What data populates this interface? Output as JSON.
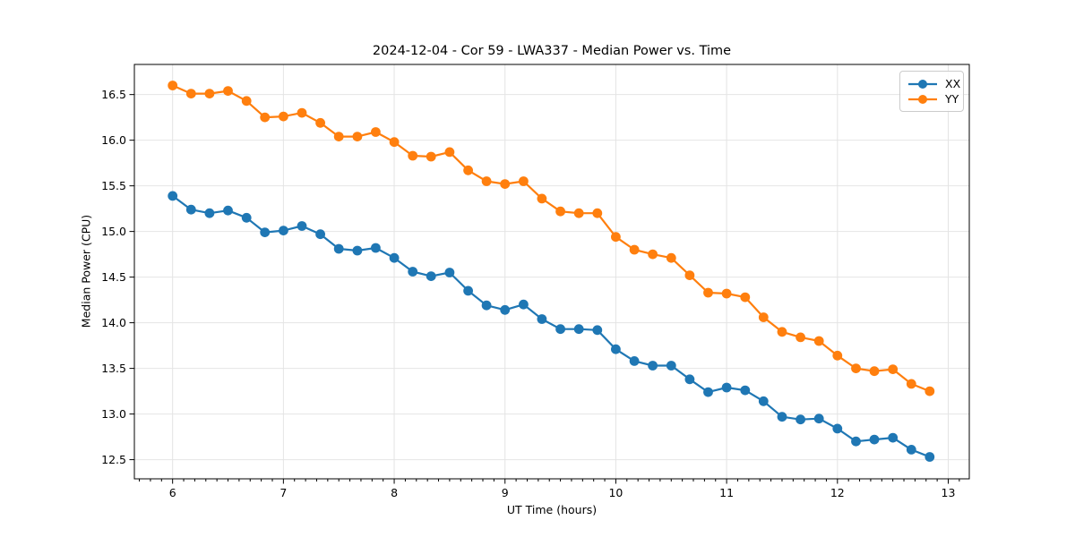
{
  "figure": {
    "background": "#ffffff",
    "grid_color": "#e4e4e4",
    "spine_color": "#000000",
    "tick_color": "#000000",
    "text_color": "#000000"
  },
  "chart_data": {
    "type": "line",
    "title": "2024-12-04 - Cor 59 - LWA337 - Median Power vs. Time",
    "xlabel": "UT Time (hours)",
    "ylabel": "Median Power (CPU)",
    "x": [
      6.0,
      6.167,
      6.333,
      6.5,
      6.667,
      6.833,
      7.0,
      7.167,
      7.333,
      7.5,
      7.667,
      7.833,
      8.0,
      8.167,
      8.333,
      8.5,
      8.667,
      8.833,
      9.0,
      9.167,
      9.333,
      9.5,
      9.667,
      9.833,
      10.0,
      10.167,
      10.333,
      10.5,
      10.667,
      10.833,
      11.0,
      11.167,
      11.333,
      11.5,
      11.667,
      11.833,
      12.0,
      12.167,
      12.333,
      12.5,
      12.667,
      12.833
    ],
    "series": [
      {
        "name": "XX",
        "color": "#1f77b4",
        "values": [
          15.39,
          15.24,
          15.2,
          15.23,
          15.15,
          14.99,
          15.01,
          15.06,
          14.97,
          14.81,
          14.79,
          14.82,
          14.71,
          14.56,
          14.51,
          14.55,
          14.35,
          14.19,
          14.14,
          14.2,
          14.04,
          13.93,
          13.93,
          13.92,
          13.71,
          13.58,
          13.53,
          13.53,
          13.38,
          13.24,
          13.29,
          13.26,
          13.14,
          12.97,
          12.94,
          12.95,
          12.84,
          12.7,
          12.72,
          12.74,
          12.61,
          12.53
        ]
      },
      {
        "name": "YY",
        "color": "#ff7f0e",
        "values": [
          16.6,
          16.51,
          16.51,
          16.54,
          16.43,
          16.25,
          16.26,
          16.3,
          16.19,
          16.04,
          16.04,
          16.09,
          15.98,
          15.83,
          15.82,
          15.87,
          15.67,
          15.55,
          15.52,
          15.55,
          15.36,
          15.22,
          15.2,
          15.2,
          14.94,
          14.8,
          14.75,
          14.71,
          14.52,
          14.33,
          14.32,
          14.28,
          14.06,
          13.9,
          13.84,
          13.8,
          13.64,
          13.5,
          13.47,
          13.49,
          13.33,
          13.25
        ]
      }
    ],
    "xlim": [
      5.655,
      13.19
    ],
    "ylim": [
      12.29,
      16.83
    ],
    "x_ticks": [
      6,
      7,
      8,
      9,
      10,
      11,
      12,
      13
    ],
    "y_ticks": [
      12.5,
      13.0,
      13.5,
      14.0,
      14.5,
      15.0,
      15.5,
      16.0,
      16.5
    ],
    "x_minor_step": 0.1,
    "grid": true,
    "legend_position": "upper right",
    "marker": "o"
  },
  "legend": {
    "items": [
      {
        "label": "XX",
        "color": "#1f77b4"
      },
      {
        "label": "YY",
        "color": "#ff7f0e"
      }
    ]
  }
}
